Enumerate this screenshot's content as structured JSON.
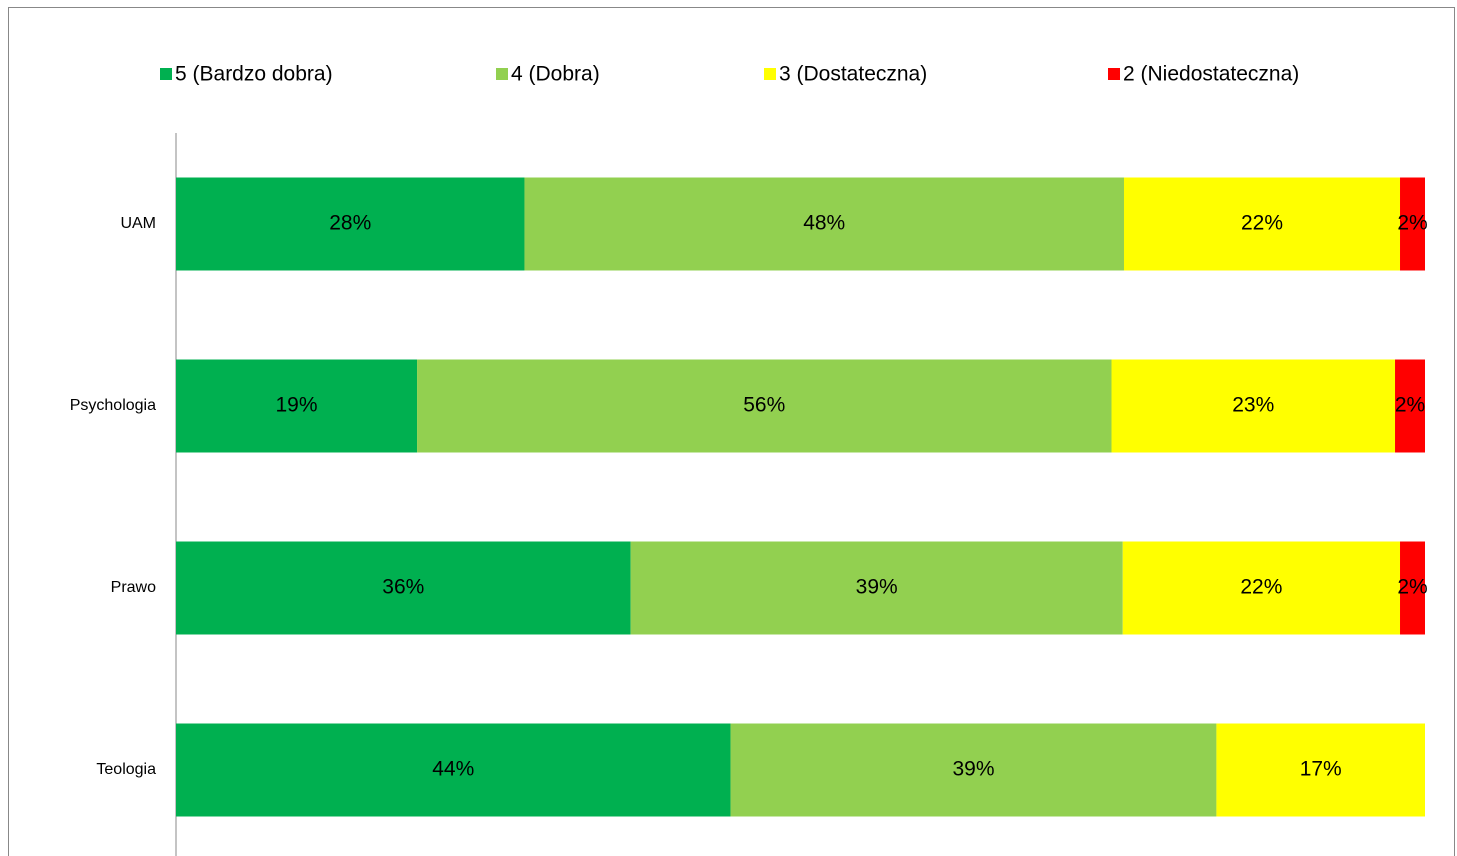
{
  "chart_data": {
    "type": "stacked-bar-horizontal",
    "categories": [
      "UAM",
      "Psychologia",
      "Prawo",
      "Teologia"
    ],
    "series": [
      {
        "name": "5 (Bardzo dobra)",
        "color": "#00b050",
        "values": [
          27.9,
          19.3,
          36.4,
          44.4
        ],
        "value_labels": [
          "28%",
          "19%",
          "36%",
          "44%"
        ]
      },
      {
        "name": "4 (Dobra)",
        "color": "#92d050",
        "values": [
          48.0,
          55.6,
          39.4,
          38.9
        ],
        "value_labels": [
          "48%",
          "56%",
          "39%",
          "39%"
        ]
      },
      {
        "name": "3 (Dostateczna)",
        "color": "#ffff00",
        "values": [
          22.1,
          22.7,
          22.2,
          16.7
        ],
        "value_labels": [
          "22%",
          "23%",
          "22%",
          "17%"
        ]
      },
      {
        "name": "2 (Niedostateczna)",
        "color": "#ff0000",
        "values": [
          2.0,
          2.4,
          2.0,
          null
        ],
        "value_labels": [
          "2%",
          "2%",
          "2%",
          null
        ]
      }
    ],
    "xlim": [
      0,
      100
    ],
    "legend": "top"
  }
}
